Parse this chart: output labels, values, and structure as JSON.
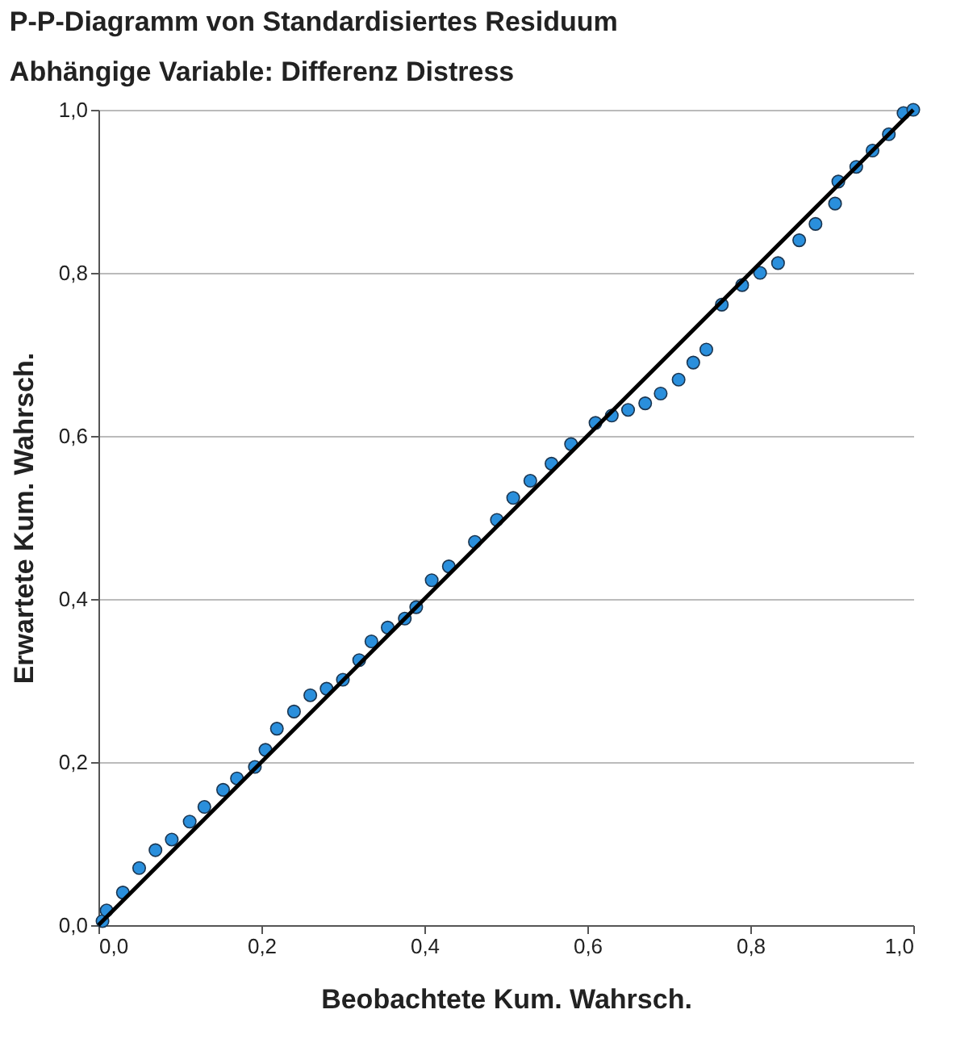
{
  "chart_data": {
    "type": "scatter",
    "title": "P-P-Diagramm von Standardisiertes Residuum",
    "subtitle": "Abhängige Variable: Differenz Distress",
    "xlabel": "Beobachtete Kum. Wahrsch.",
    "ylabel": "Erwartete Kum. Wahrsch.",
    "xlim": [
      0,
      1
    ],
    "ylim": [
      0,
      1
    ],
    "xticks": [
      {
        "value": 0,
        "label": "0,0"
      },
      {
        "value": 0.2,
        "label": "0,2"
      },
      {
        "value": 0.4,
        "label": "0,4"
      },
      {
        "value": 0.6,
        "label": "0,6"
      },
      {
        "value": 0.8,
        "label": "0,8"
      },
      {
        "value": 1,
        "label": "1,0"
      }
    ],
    "yticks": [
      {
        "value": 0,
        "label": "0,0"
      },
      {
        "value": 0.2,
        "label": "0,2"
      },
      {
        "value": 0.4,
        "label": "0,4"
      },
      {
        "value": 0.6,
        "label": "0,6"
      },
      {
        "value": 0.8,
        "label": "0,8"
      },
      {
        "value": 1,
        "label": "1,0"
      }
    ],
    "grid": "y",
    "series": [
      {
        "marker": "circle",
        "color": "#2a8fdc",
        "x": [
          0.005,
          0.01,
          0.03,
          0.05,
          0.07,
          0.09,
          0.112,
          0.13,
          0.153,
          0.17,
          0.192,
          0.205,
          0.219,
          0.24,
          0.26,
          0.28,
          0.3,
          0.32,
          0.335,
          0.355,
          0.376,
          0.39,
          0.409,
          0.43,
          0.462,
          0.489,
          0.509,
          0.53,
          0.556,
          0.58,
          0.61,
          0.63,
          0.65,
          0.671,
          0.69,
          0.712,
          0.73,
          0.746,
          0.765,
          0.79,
          0.812,
          0.834,
          0.86,
          0.88,
          0.904,
          0.908,
          0.93,
          0.95,
          0.97,
          0.988,
          1.0
        ],
        "values": [
          0.005,
          0.018,
          0.04,
          0.07,
          0.092,
          0.105,
          0.127,
          0.145,
          0.166,
          0.18,
          0.194,
          0.215,
          0.241,
          0.262,
          0.282,
          0.29,
          0.301,
          0.325,
          0.348,
          0.365,
          0.376,
          0.39,
          0.423,
          0.44,
          0.47,
          0.497,
          0.524,
          0.545,
          0.566,
          0.59,
          0.616,
          0.625,
          0.632,
          0.64,
          0.652,
          0.669,
          0.69,
          0.706,
          0.761,
          0.785,
          0.8,
          0.812,
          0.84,
          0.86,
          0.885,
          0.912,
          0.93,
          0.95,
          0.97,
          0.996,
          1.0
        ]
      },
      {
        "type": "line",
        "marker": "none",
        "line_style": "solid",
        "color": "#000000",
        "x": [
          0,
          1
        ],
        "values": [
          0,
          1
        ]
      }
    ]
  }
}
